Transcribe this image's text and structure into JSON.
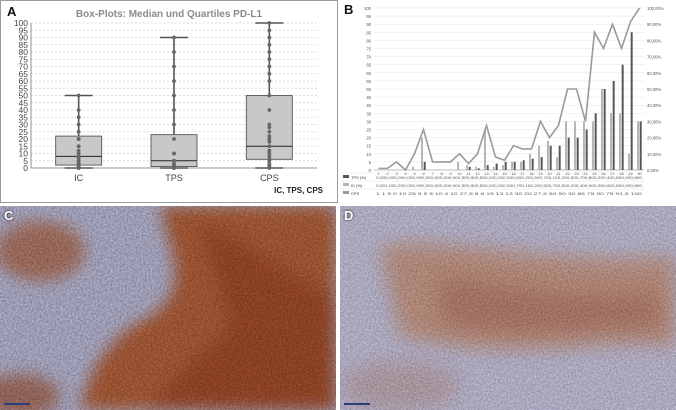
{
  "panels": {
    "A": {
      "label": "A"
    },
    "B": {
      "label": "B"
    },
    "C": {
      "label": "C"
    },
    "D": {
      "label": "D"
    }
  },
  "chart_data": [
    {
      "type": "box",
      "title": "Box-Plots: Median und Quartiles PD-L1",
      "note": "IC, TPS, CPS",
      "ylim": [
        0,
        100
      ],
      "yticks": [
        0,
        5,
        10,
        15,
        20,
        25,
        30,
        35,
        40,
        45,
        50,
        55,
        60,
        65,
        70,
        75,
        80,
        85,
        90,
        95,
        100
      ],
      "grid": true,
      "categories": [
        "IC",
        "TPS",
        "CPS"
      ],
      "boxes": [
        {
          "name": "IC",
          "min": 0,
          "q1": 2,
          "median": 8,
          "q3": 22,
          "max": 50,
          "points": [
            0,
            0,
            1,
            1,
            2,
            2,
            3,
            3,
            5,
            5,
            5,
            7,
            8,
            10,
            10,
            12,
            15,
            15,
            20,
            20,
            25,
            30,
            35,
            40,
            50
          ]
        },
        {
          "name": "TPS",
          "min": 0,
          "q1": 1,
          "median": 5,
          "q3": 23,
          "max": 90,
          "points": [
            0,
            0,
            0,
            1,
            1,
            2,
            3,
            5,
            5,
            10,
            10,
            20,
            30,
            40,
            50,
            60,
            70,
            80,
            90
          ]
        },
        {
          "name": "CPS",
          "min": 0,
          "q1": 6,
          "median": 15,
          "q3": 50,
          "max": 100,
          "points": [
            0,
            1,
            2,
            3,
            5,
            6,
            8,
            10,
            12,
            15,
            18,
            20,
            22,
            25,
            28,
            30,
            40,
            50,
            60,
            65,
            70,
            75,
            80,
            85,
            90,
            95,
            100
          ]
        }
      ]
    },
    {
      "type": "bar",
      "subtype": "bar+line",
      "ylim": [
        0,
        100
      ],
      "yticks_left": [
        "0",
        "5",
        "10",
        "15",
        "20",
        "25",
        "30",
        "35",
        "40",
        "45",
        "50",
        "55",
        "60",
        "65",
        "70",
        "75",
        "80",
        "85",
        "90",
        "95",
        "100"
      ],
      "yticks_right": [
        "0,00%",
        "10,00%",
        "20,00%",
        "30,00%",
        "40,00%",
        "50,00%",
        "60,00%",
        "70,00%",
        "80,00%",
        "90,00%",
        "100,00%"
      ],
      "categories": [
        "1",
        "2",
        "3",
        "4",
        "5",
        "6",
        "7",
        "8",
        "9",
        "10",
        "11",
        "12",
        "13",
        "14",
        "15",
        "16",
        "17",
        "18",
        "19",
        "20",
        "21",
        "22",
        "23",
        "24",
        "25",
        "26",
        "27",
        "28",
        "29",
        "30"
      ],
      "series": [
        {
          "name": "TPS (%)",
          "type": "bar",
          "values": [
            0,
            0,
            0,
            0,
            0,
            5,
            0,
            0,
            0,
            0,
            2,
            1,
            3,
            4,
            5,
            5,
            6,
            7,
            8,
            15,
            15,
            20,
            20,
            25,
            35,
            50,
            55,
            65,
            85,
            30
          ]
        },
        {
          "name": "IC (%)",
          "type": "bar",
          "values": [
            0,
            0,
            0,
            0,
            2,
            20,
            0,
            0,
            0,
            5,
            3,
            2,
            25,
            2,
            3,
            5,
            5,
            10,
            15,
            18,
            8,
            30,
            30,
            30,
            30,
            50,
            35,
            35,
            10,
            30
          ]
        },
        {
          "name": "CPS",
          "type": "line",
          "values": [
            1,
            1,
            5,
            0,
            10,
            25,
            5,
            5,
            5,
            10,
            4,
            10,
            27.5,
            8,
            6,
            15,
            13,
            13,
            30,
            20,
            27.5,
            50,
            50,
            30,
            85,
            75,
            90,
            75,
            91.5,
            100
          ]
        }
      ],
      "table_rows": [
        {
          "label": "TPS (%)",
          "text": "0,000,000,000,000,000,500,500,000,500,500,500,500,000,200,500,800,200,500,700,100,200,500,700,800,200,400,500,900,800"
        },
        {
          "label": "IC (%)",
          "text": "0,001,000,200,000,000,500,500,000,500,500,500,500,000,200,500,700,100,200,500,700,800,200,400,500,900,800,500,900,800"
        },
        {
          "label": "CPS",
          "text": "1 1 5 0 10 25 5 5 5 10 4 10 27,5 8 6 15 13 13 30 20 27,5 50 50 30 85 75 90 75 91,5 100"
        }
      ]
    }
  ],
  "colors": {
    "box_fill": "#c8c8c8",
    "box_stroke": "#555555",
    "tps_bar": "#555555",
    "ic_bar": "#b5b5b5",
    "cps_line": "#9a9a9a",
    "grid": "#d0d0d0",
    "title": "#8a8a8a"
  }
}
